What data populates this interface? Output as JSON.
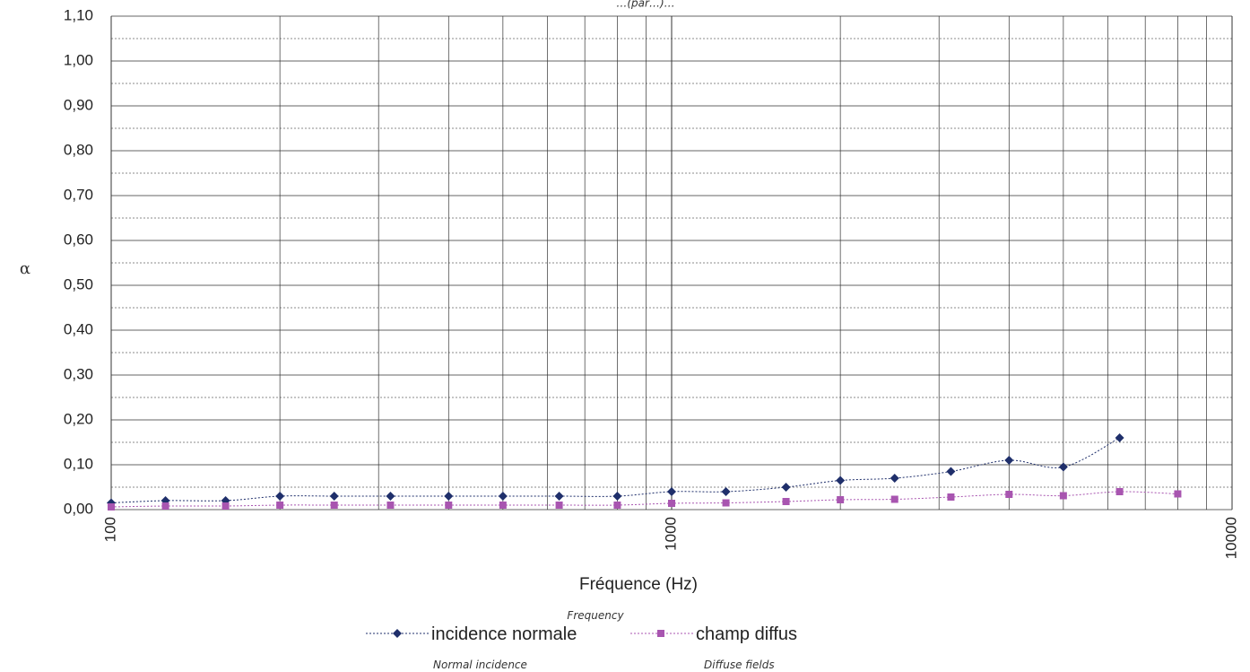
{
  "chart_data": {
    "type": "line",
    "title_fragment": "…(par…)…",
    "xlabel": "Fréquence  (Hz)",
    "xlabel_en": "Frequency",
    "ylabel": "α",
    "x_scale": "log",
    "xlim": [
      100,
      10000
    ],
    "ylim": [
      0,
      1.1
    ],
    "x_ticks": [
      "100",
      "1000",
      "10000"
    ],
    "y_ticks": [
      "0,00",
      "0,10",
      "0,20",
      "0,30",
      "0,40",
      "0,50",
      "0,60",
      "0,70",
      "0,80",
      "0,90",
      "1,00",
      "1,10"
    ],
    "grid": true,
    "legend_position": "bottom",
    "series": [
      {
        "name": "incidence normale",
        "name_en": "Normal incidence",
        "color": "#1f2f6b",
        "marker": "diamond",
        "x": [
          100,
          125,
          160,
          200,
          250,
          315,
          400,
          500,
          630,
          800,
          1000,
          1250,
          1600,
          2000,
          2500,
          3150,
          4000,
          5000,
          6300
        ],
        "values": [
          0.015,
          0.02,
          0.02,
          0.03,
          0.03,
          0.03,
          0.03,
          0.03,
          0.03,
          0.03,
          0.04,
          0.04,
          0.05,
          0.065,
          0.07,
          0.085,
          0.11,
          0.095,
          0.16
        ]
      },
      {
        "name": "champ diffus",
        "name_en": "Diffuse fields",
        "color": "#a855b0",
        "marker": "square",
        "x": [
          100,
          125,
          160,
          200,
          250,
          315,
          400,
          500,
          630,
          800,
          1000,
          1250,
          1600,
          2000,
          2500,
          3150,
          4000,
          5000,
          6300,
          8000
        ],
        "values": [
          0.006,
          0.008,
          0.008,
          0.01,
          0.01,
          0.01,
          0.01,
          0.01,
          0.01,
          0.01,
          0.014,
          0.015,
          0.018,
          0.022,
          0.023,
          0.028,
          0.034,
          0.031,
          0.04,
          0.035
        ]
      }
    ]
  }
}
